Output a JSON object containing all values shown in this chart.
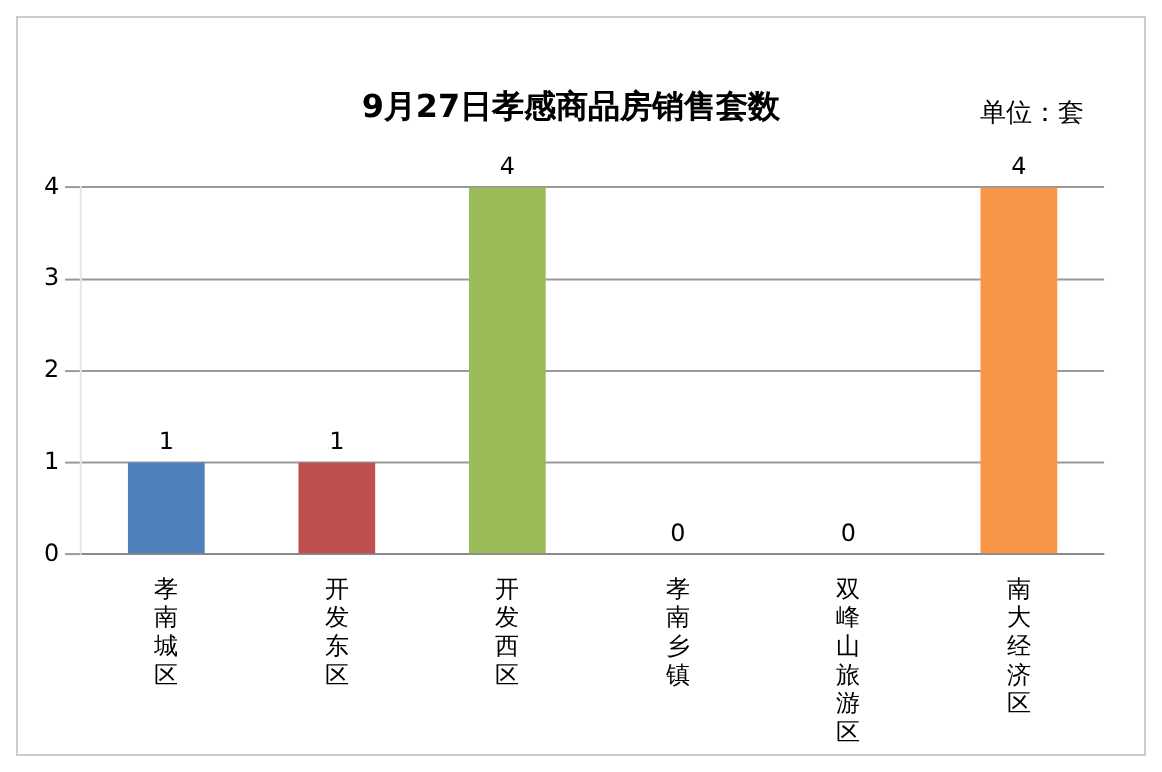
{
  "chart_data": {
    "type": "bar",
    "title": "9月27日孝感商品房销售套数",
    "annotations": [
      "单位：套"
    ],
    "categories": [
      "孝南城区",
      "开发东区",
      "开发西区",
      "孝南乡镇",
      "双峰山旅游区",
      "南大经济区"
    ],
    "values": [
      1,
      1,
      4,
      0,
      0,
      4
    ],
    "colors": [
      "#4f81bd",
      "#c0504d",
      "#9bbb59",
      "#8064a2",
      "#4bacc6",
      "#f79646"
    ],
    "ylim": [
      0,
      4
    ],
    "yticks": [
      0,
      1,
      2,
      3,
      4
    ],
    "grid": "y",
    "legend": false,
    "data_labels": true
  }
}
